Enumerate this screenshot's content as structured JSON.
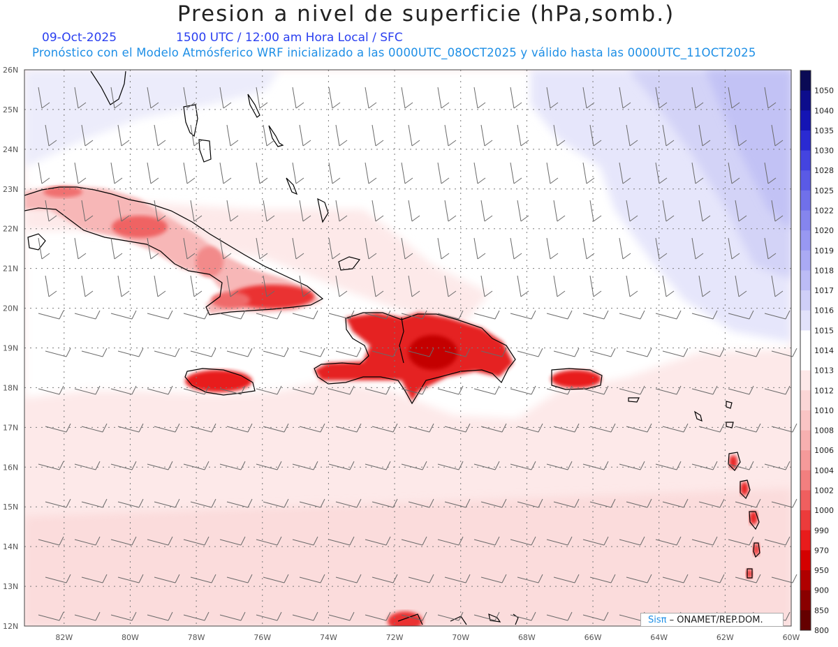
{
  "header": {
    "title": "Presion a nivel de superficie (hPa,somb.)",
    "date": "09-Oct-2025",
    "time_line": "1500 UTC / 12:00 am Hora Local / SFC",
    "description": "Pronóstico con el Modelo Atmósferico WRF inicializado a las 0000UTC_08OCT2025 y válido hasta las  0000UTC_11OCT2025"
  },
  "map": {
    "lat_labels": [
      "26N",
      "25N",
      "24N",
      "23N",
      "22N",
      "21N",
      "20N",
      "19N",
      "18N",
      "17N",
      "16N",
      "15N",
      "14N",
      "13N",
      "12N"
    ],
    "lon_labels": [
      "82W",
      "80W",
      "78W",
      "76W",
      "74W",
      "72W",
      "70W",
      "68W",
      "66W",
      "64W",
      "62W",
      "60W"
    ],
    "lat_range": [
      12,
      26
    ],
    "lon_range": [
      -83.2,
      -60
    ],
    "grid": "dotted"
  },
  "colorbar": {
    "levels": [
      "1050",
      "1040",
      "1035",
      "1030",
      "1028",
      "1025",
      "1022",
      "1020",
      "1019",
      "1018",
      "1017",
      "1016",
      "1015",
      "1014",
      "1013",
      "1012",
      "1010",
      "1008",
      "1006",
      "1004",
      "1002",
      "1000",
      "990",
      "970",
      "950",
      "900",
      "850",
      "800"
    ],
    "colors": [
      "#0a0a55",
      "#0d0d8c",
      "#1414b4",
      "#2a2ad2",
      "#4444e0",
      "#5a5ae6",
      "#7070ea",
      "#8585ee",
      "#9898f2",
      "#aaaaf4",
      "#bcbcf6",
      "#cfcff8",
      "#e2e2fb",
      "#ffffff",
      "#ffffff",
      "#fde8e8",
      "#fbd6d6",
      "#f9c4c4",
      "#f7b0b0",
      "#f59a9a",
      "#f27f7f",
      "#ef5f5f",
      "#ec3b3b",
      "#e81c1c",
      "#d40000",
      "#b00000",
      "#8a0000",
      "#650000"
    ]
  },
  "credit": {
    "logo": "Sisπ",
    "text": "– ONAMET/REP.DOM."
  }
}
